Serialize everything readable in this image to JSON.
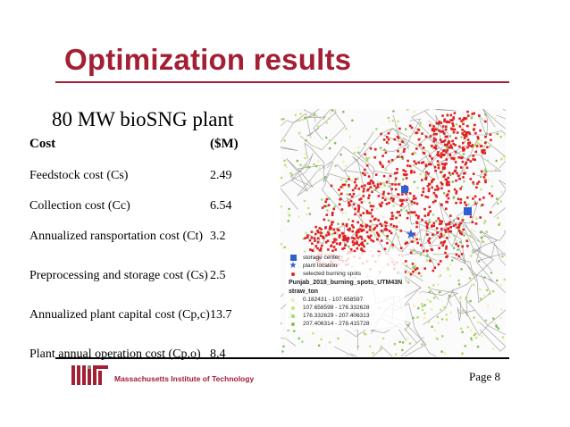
{
  "slide": {
    "title": "Optimization results",
    "subtitle": "80 MW bioSNG plant",
    "page": "Page 8"
  },
  "table": {
    "header": {
      "label": "Cost",
      "value": "($M)"
    },
    "rows": [
      {
        "label": "Feedstock cost (Cs)",
        "value": "2.49"
      },
      {
        "label": "Collection cost (Cc)",
        "value": "6.54"
      },
      {
        "label": "Annualized ransportation cost (Ct)",
        "value": "3.2"
      },
      {
        "label": "Preprocessing and storage cost (Cs)",
        "value": "2.5"
      },
      {
        "label": "Annualized plant capital cost (Cp,c)",
        "value": "13.7"
      },
      {
        "label": "Plant annual operation cost (Cp,o)",
        "value": "8.4"
      }
    ]
  },
  "map_legend": {
    "storage": "storage center",
    "plant": "plant location",
    "selected": "selected burning spots",
    "layer_name": "Punjab_2018_burning_spots_UTM43N",
    "field_name": "straw_ton",
    "classes": [
      {
        "label": "0.182431 - 107.658597",
        "color": "#e8f0b0"
      },
      {
        "label": "107.658598 - 176.332628",
        "color": "#c8e07a"
      },
      {
        "label": "176.332629 - 207.406313",
        "color": "#a9d46a"
      },
      {
        "label": "207.406314 - 278.415728",
        "color": "#7fbf5a"
      }
    ],
    "colors": {
      "selected": "#e02020",
      "marker": "#2f5fd0"
    }
  },
  "logo": {
    "text": "Massachusetts Institute of Technology",
    "color": "#a31f34"
  }
}
